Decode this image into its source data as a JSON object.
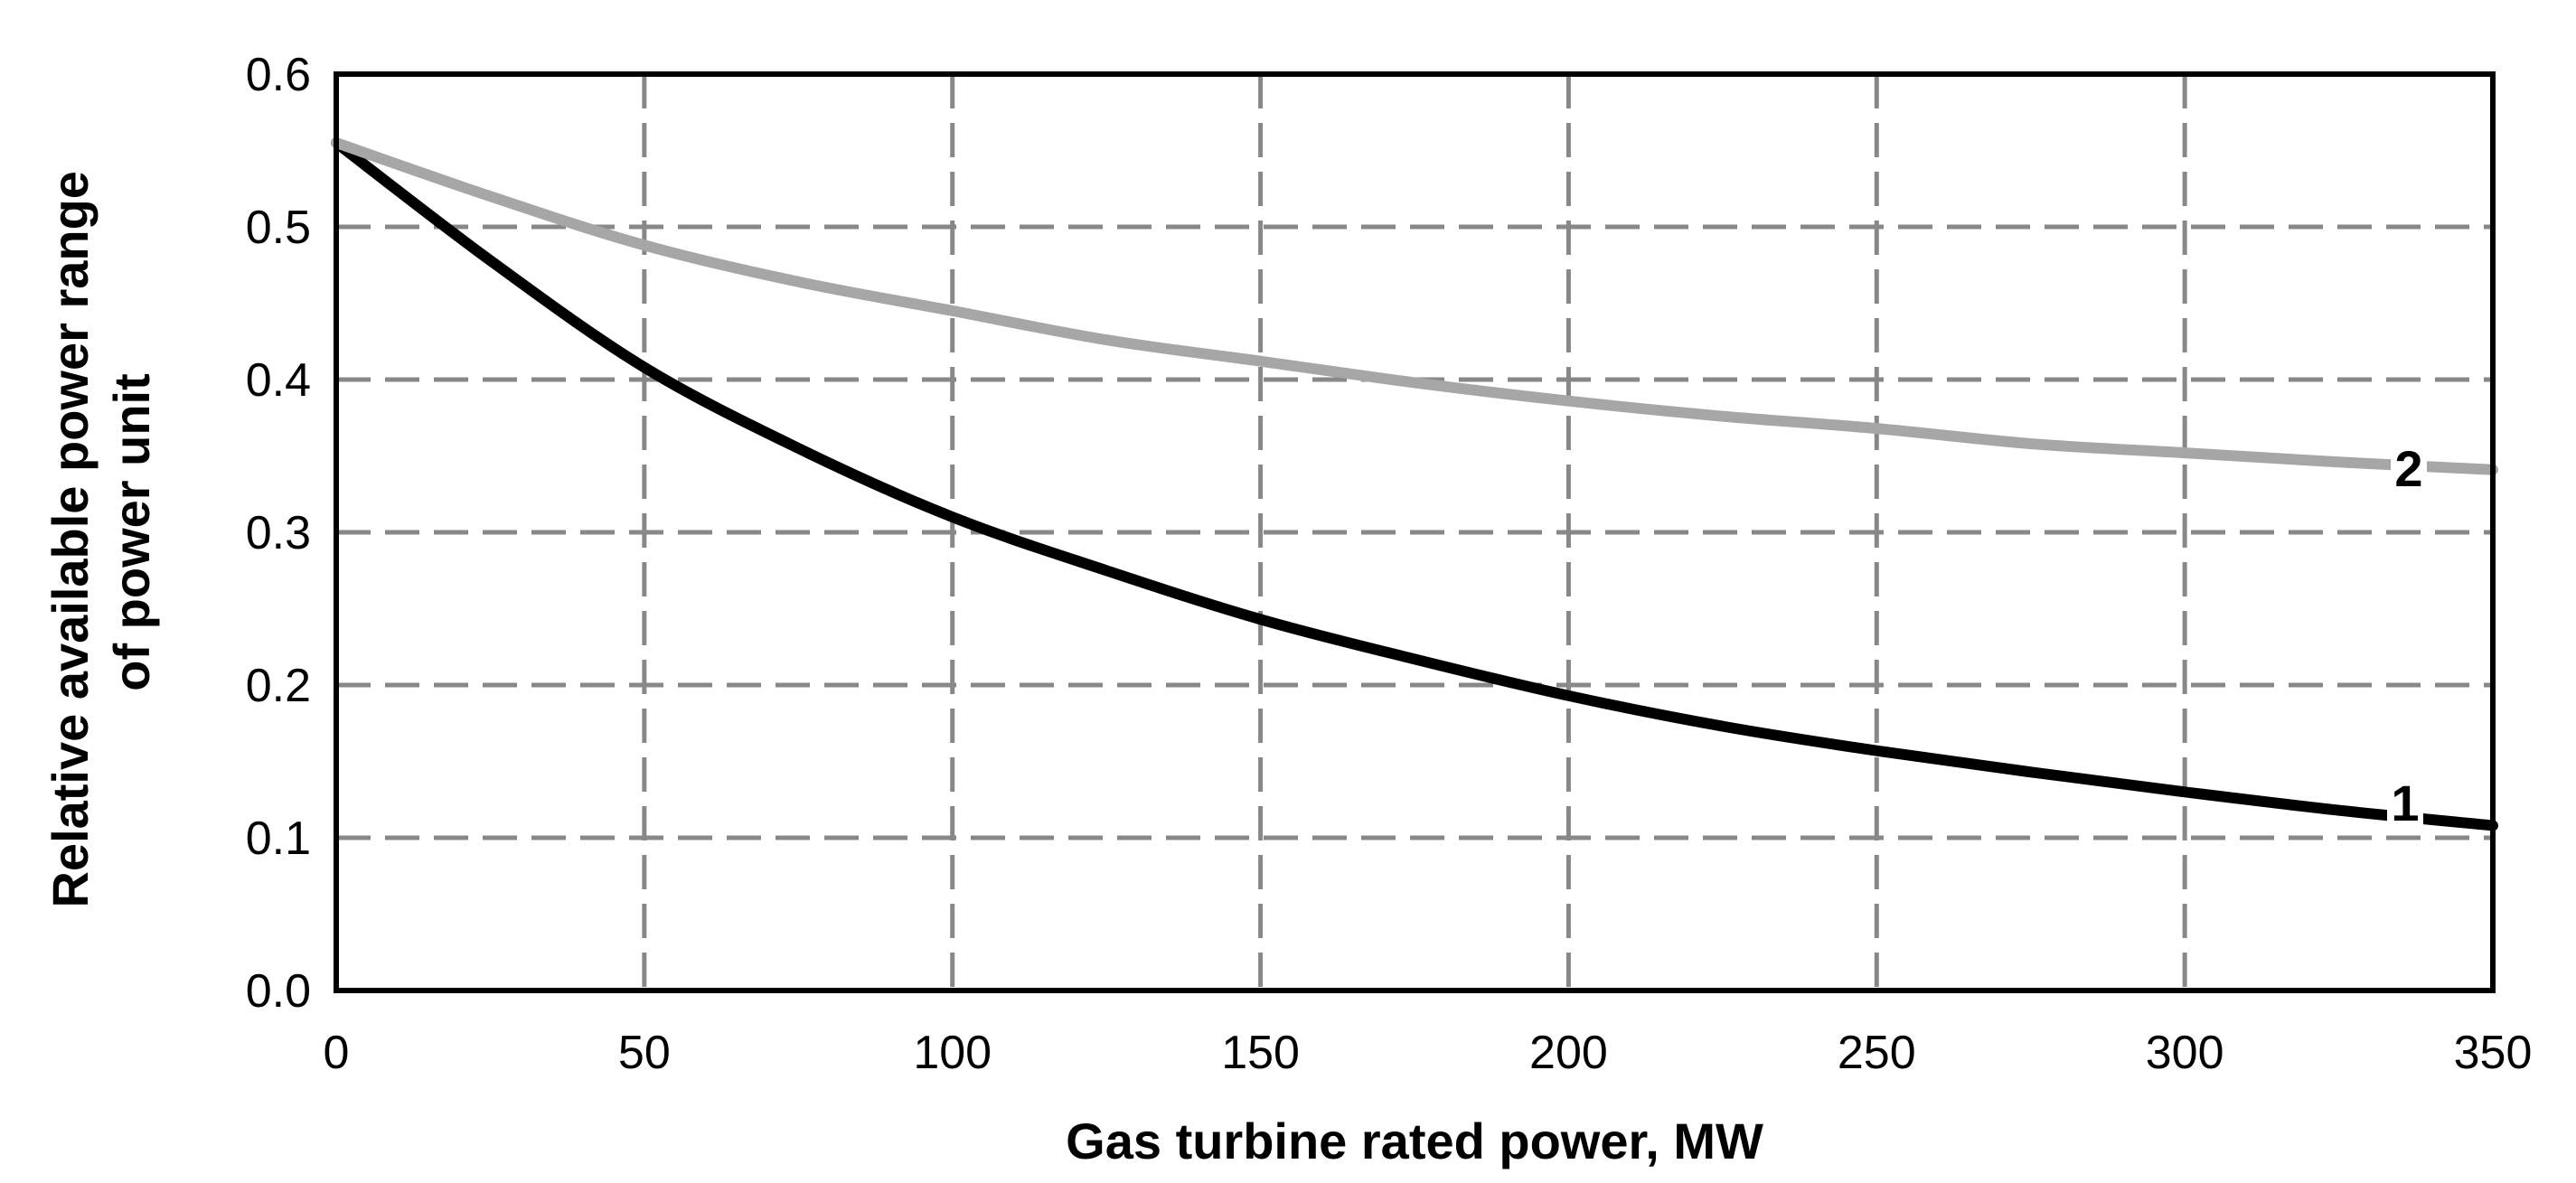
{
  "chart_data": {
    "type": "line",
    "title": "",
    "xlabel": "Gas turbine rated power, MW",
    "ylabel_lines": [
      "Relative available power range",
      "of power unit"
    ],
    "xlim": [
      0,
      350
    ],
    "ylim": [
      0.0,
      0.6
    ],
    "x_ticks": [
      0,
      50,
      100,
      150,
      200,
      250,
      300,
      350
    ],
    "x_tick_labels": [
      "0",
      "50",
      "100",
      "150",
      "200",
      "250",
      "300",
      "350"
    ],
    "y_ticks": [
      0.0,
      0.1,
      0.2,
      0.3,
      0.4,
      0.5,
      0.6
    ],
    "y_tick_labels": [
      "0.0",
      "0.1",
      "0.2",
      "0.3",
      "0.4",
      "0.5",
      "0.6"
    ],
    "grid": true,
    "legend": "none",
    "series": [
      {
        "name": "1",
        "label": "1",
        "color": "#000000",
        "x": [
          0,
          25,
          50,
          75,
          100,
          125,
          150,
          175,
          200,
          225,
          250,
          275,
          300,
          325,
          350
        ],
        "y": [
          0.555,
          0.478,
          0.408,
          0.355,
          0.31,
          0.275,
          0.243,
          0.217,
          0.193,
          0.173,
          0.157,
          0.143,
          0.13,
          0.118,
          0.108
        ]
      },
      {
        "name": "2",
        "label": "2",
        "color": "#a6a6a6",
        "x": [
          0,
          25,
          50,
          75,
          100,
          125,
          150,
          175,
          200,
          225,
          250,
          275,
          300,
          325,
          350
        ],
        "y": [
          0.555,
          0.52,
          0.488,
          0.464,
          0.445,
          0.426,
          0.412,
          0.398,
          0.386,
          0.376,
          0.368,
          0.358,
          0.352,
          0.346,
          0.341
        ]
      }
    ]
  }
}
